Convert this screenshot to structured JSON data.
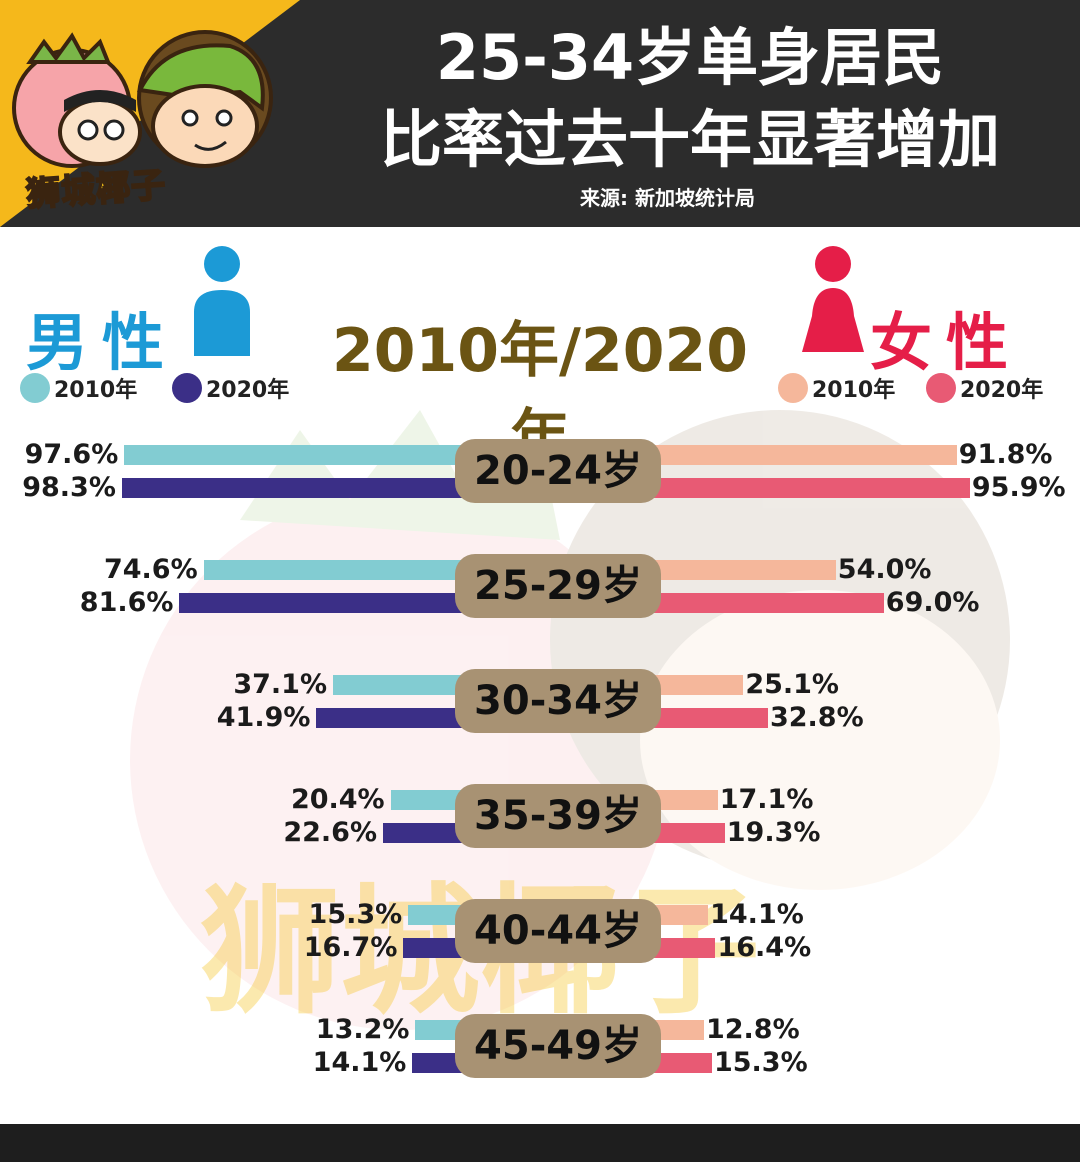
{
  "header": {
    "title_line1": "25-34岁单身居民",
    "title_line2": "比率过去十年显著增加",
    "source": "来源: 新加坡统计局",
    "logo_text": "狮城椰子"
  },
  "labels": {
    "male": "男性",
    "female": "女性",
    "main_year": "2010年/2020年"
  },
  "legend": {
    "male": [
      {
        "label": "2010年",
        "color": "#82ccd2"
      },
      {
        "label": "2020年",
        "color": "#3b2f87"
      }
    ],
    "female": [
      {
        "label": "2010年",
        "color": "#f5b79b"
      },
      {
        "label": "2020年",
        "color": "#e85a74"
      }
    ]
  },
  "colors": {
    "male_2010": "#82ccd2",
    "male_2020": "#3b2f87",
    "female_2010": "#f5b79b",
    "female_2020": "#e85a74",
    "age_box": "#a89273"
  },
  "chart_data": {
    "type": "bar",
    "categories": [
      "20-24岁",
      "25-29岁",
      "30-34岁",
      "35-39岁",
      "40-44岁",
      "45-49岁"
    ],
    "series": [
      {
        "name": "男性 2010年",
        "values": [
          97.6,
          74.6,
          37.1,
          20.4,
          15.3,
          13.2
        ]
      },
      {
        "name": "男性 2020年",
        "values": [
          98.3,
          81.6,
          41.9,
          22.6,
          16.7,
          14.1
        ]
      },
      {
        "name": "女性 2010年",
        "values": [
          91.8,
          54.0,
          25.1,
          17.1,
          14.1,
          12.8
        ]
      },
      {
        "name": "女性 2020年",
        "values": [
          95.9,
          69.0,
          32.8,
          19.3,
          16.4,
          15.3
        ]
      }
    ],
    "value_labels": {
      "male_2010": [
        "97.6%",
        "74.6%",
        "37.1%",
        "20.4%",
        "15.3%",
        "13.2%"
      ],
      "male_2020": [
        "98.3%",
        "81.6%",
        "41.9%",
        "22.6%",
        "16.7%",
        "14.1%"
      ],
      "female_2010": [
        "91.8%",
        "54.0%",
        "25.1%",
        "17.1%",
        "14.1%",
        "12.8%"
      ],
      "female_2020": [
        "95.9%",
        "69.0%",
        "32.8%",
        "19.3%",
        "16.4%",
        "15.3%"
      ]
    }
  }
}
